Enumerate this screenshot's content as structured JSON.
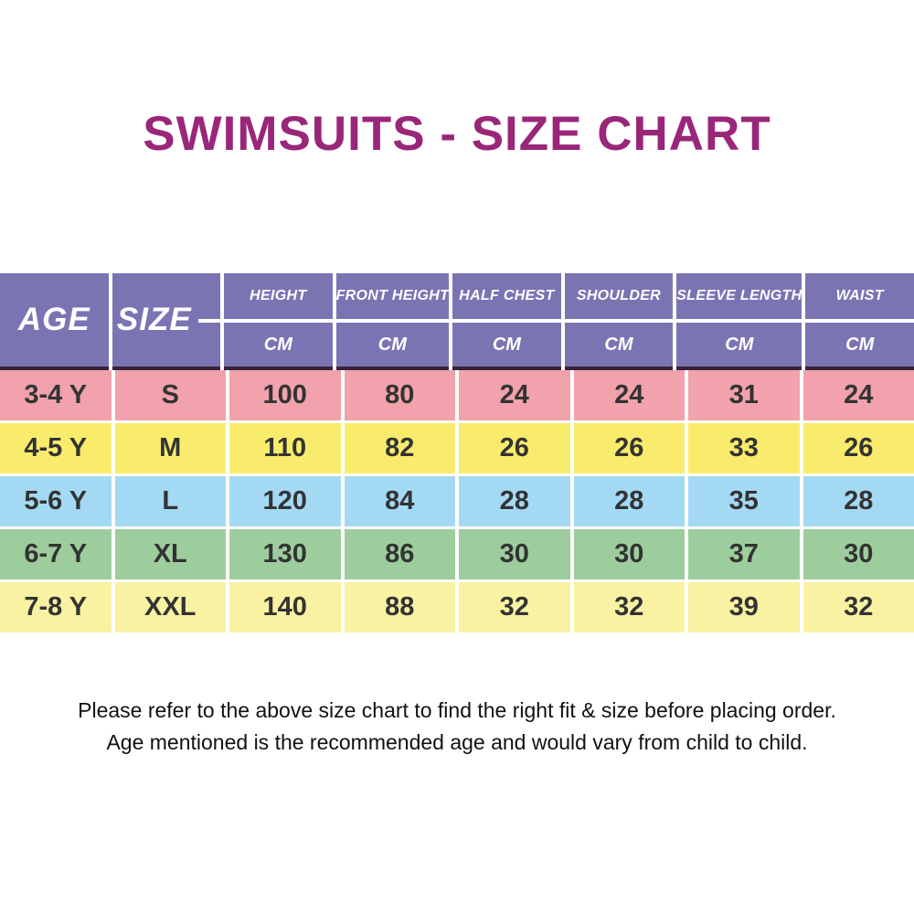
{
  "title": "SWIMSUITS - SIZE CHART",
  "table": {
    "corner_columns": [
      "AGE",
      "SIZE"
    ],
    "measure_columns": [
      "HEIGHT",
      "FRONT HEIGHT",
      "HALF CHEST",
      "SHOULDER",
      "SLEEVE LENGTH",
      "WAIST"
    ],
    "unit_label": "CM",
    "rows": [
      {
        "age": "3-4 Y",
        "size": "S",
        "values": [
          "100",
          "80",
          "24",
          "24",
          "31",
          "24"
        ],
        "row_color": "#f1a2ac"
      },
      {
        "age": "4-5 Y",
        "size": "M",
        "values": [
          "110",
          "82",
          "26",
          "26",
          "33",
          "26"
        ],
        "row_color": "#f9ec6c"
      },
      {
        "age": "5-6 Y",
        "size": "L",
        "values": [
          "120",
          "84",
          "28",
          "28",
          "35",
          "28"
        ],
        "row_color": "#a4d9f4"
      },
      {
        "age": "6-7 Y",
        "size": "XL",
        "values": [
          "130",
          "86",
          "30",
          "30",
          "37",
          "30"
        ],
        "row_color": "#9ecd9d"
      },
      {
        "age": "7-8 Y",
        "size": "XXL",
        "values": [
          "140",
          "88",
          "32",
          "32",
          "39",
          "32"
        ],
        "row_color": "#f8f2a2"
      }
    ]
  },
  "footer": {
    "line1": "Please refer to the above size chart to find the right fit & size before placing order.",
    "line2": "Age mentioned is the recommended age and would vary from child to child."
  },
  "colors": {
    "title": "#9a2679",
    "header_bg": "#7b74b3",
    "header_underline": "#362338",
    "header_text": "#ffffff",
    "cell_text": "#333333",
    "background": "#ffffff"
  },
  "chart_data": {
    "type": "table",
    "title": "SWIMSUITS - SIZE CHART",
    "columns": [
      "AGE",
      "SIZE",
      "HEIGHT CM",
      "FRONT HEIGHT CM",
      "HALF CHEST CM",
      "SHOULDER CM",
      "SLEEVE LENGTH CM",
      "WAIST CM"
    ],
    "rows": [
      [
        "3-4 Y",
        "S",
        100,
        80,
        24,
        24,
        31,
        24
      ],
      [
        "4-5 Y",
        "M",
        110,
        82,
        26,
        26,
        33,
        26
      ],
      [
        "5-6 Y",
        "L",
        120,
        84,
        28,
        28,
        35,
        28
      ],
      [
        "6-7 Y",
        "XL",
        130,
        86,
        30,
        30,
        37,
        30
      ],
      [
        "7-8 Y",
        "XXL",
        140,
        88,
        32,
        32,
        39,
        32
      ]
    ]
  }
}
